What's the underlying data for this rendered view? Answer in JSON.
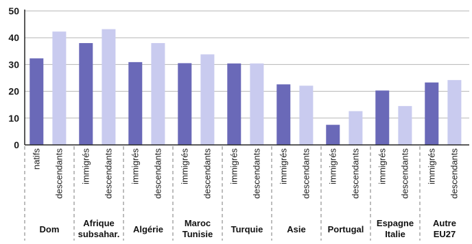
{
  "chart_data": {
    "type": "bar",
    "ylim": [
      0,
      50
    ],
    "yticks": [
      "0",
      "10",
      "20",
      "30",
      "40",
      "50"
    ],
    "grid": true,
    "groups": [
      {
        "label": [
          "Dom"
        ],
        "bars": [
          {
            "sublabel": "natifs",
            "value": 32.3,
            "kind": "first"
          },
          {
            "sublabel": "descendants",
            "value": 42.3,
            "kind": "second"
          }
        ]
      },
      {
        "label": [
          "Afrique",
          "subsahar."
        ],
        "bars": [
          {
            "sublabel": "immigrés",
            "value": 38.0,
            "kind": "first"
          },
          {
            "sublabel": "descendants",
            "value": 43.2,
            "kind": "second"
          }
        ]
      },
      {
        "label": [
          "Algérie"
        ],
        "bars": [
          {
            "sublabel": "immigrés",
            "value": 30.9,
            "kind": "first"
          },
          {
            "sublabel": "descendants",
            "value": 38.0,
            "kind": "second"
          }
        ]
      },
      {
        "label": [
          "Maroc",
          "Tunisie"
        ],
        "bars": [
          {
            "sublabel": "immigrés",
            "value": 30.5,
            "kind": "first"
          },
          {
            "sublabel": "descendants",
            "value": 33.8,
            "kind": "second"
          }
        ]
      },
      {
        "label": [
          "Turquie"
        ],
        "bars": [
          {
            "sublabel": "immigrés",
            "value": 30.4,
            "kind": "first"
          },
          {
            "sublabel": "descendants",
            "value": 30.4,
            "kind": "second"
          }
        ]
      },
      {
        "label": [
          "Asie"
        ],
        "bars": [
          {
            "sublabel": "immigrés",
            "value": 22.6,
            "kind": "first"
          },
          {
            "sublabel": "descendants",
            "value": 22.1,
            "kind": "second"
          }
        ]
      },
      {
        "label": [
          "Portugal"
        ],
        "bars": [
          {
            "sublabel": "immigrés",
            "value": 7.5,
            "kind": "first"
          },
          {
            "sublabel": "descendants",
            "value": 12.6,
            "kind": "second"
          }
        ]
      },
      {
        "label": [
          "Espagne",
          "Italie"
        ],
        "bars": [
          {
            "sublabel": "immigrés",
            "value": 20.3,
            "kind": "first"
          },
          {
            "sublabel": "descendants",
            "value": 14.5,
            "kind": "second"
          }
        ]
      },
      {
        "label": [
          "Autre",
          "EU27"
        ],
        "bars": [
          {
            "sublabel": "immigrés",
            "value": 23.3,
            "kind": "first"
          },
          {
            "sublabel": "descendants",
            "value": 24.2,
            "kind": "second"
          }
        ]
      }
    ],
    "colors": {
      "first": "#6a69b8",
      "second": "#c9cbef",
      "grid": "#b5b5b5",
      "axis": "#222222",
      "divider": "#7a7a7a"
    }
  }
}
